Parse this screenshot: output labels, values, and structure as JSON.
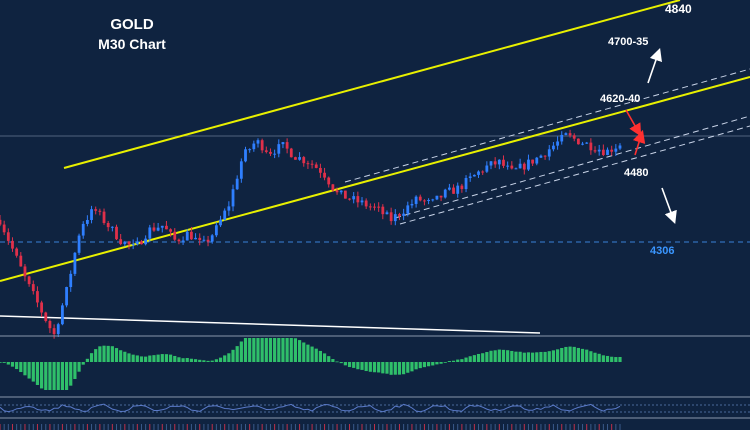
{
  "chart_data": {
    "type": "candlestick",
    "title": "GOLD",
    "subtitle": "M30 Chart",
    "annotations": {
      "target_high": "4840",
      "target_mid": "4700-35",
      "resistance": "4620-40",
      "support": "4480",
      "support_low": "4306"
    },
    "price_path": [
      4450,
      4390,
      4330,
      4280,
      4230,
      4320,
      4440,
      4470,
      4440,
      4410,
      4395,
      4430,
      4440,
      4410,
      4425,
      4400,
      4430,
      4480,
      4570,
      4600,
      4580,
      4590,
      4570,
      4560,
      4540,
      4500,
      4490,
      4480,
      4470,
      4450,
      4470,
      4490,
      4480,
      4500,
      4510,
      4530,
      4550,
      4560,
      4540,
      4555,
      4570,
      4590,
      4610,
      4600,
      4590,
      4580,
      4595
    ],
    "price_range": [
      4240,
      4850
    ],
    "series_colors": {
      "up": "#2f7fff",
      "down": "#e0304a",
      "channel": "#e8f000",
      "inner_channel": "#c9d4e8",
      "support_line": "#3a82d8",
      "text": "#ffffff",
      "blue_label": "#3a96ff",
      "arrow_white": "#ffffff",
      "arrow_red": "#ff3030",
      "macd": "#2fbf6a",
      "background": "#0f2340"
    }
  }
}
